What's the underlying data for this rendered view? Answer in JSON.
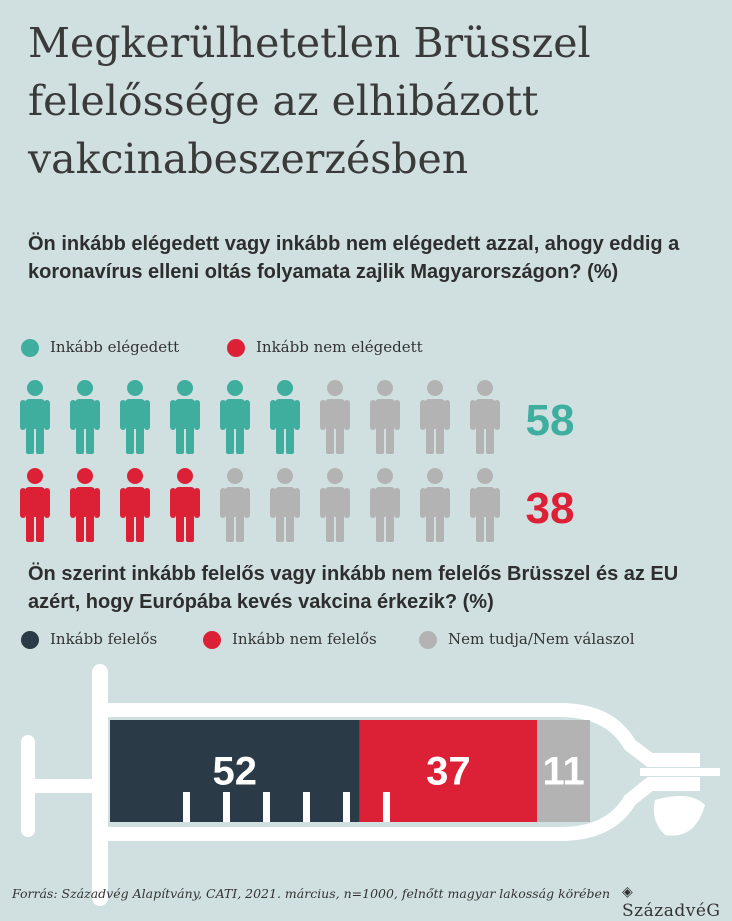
{
  "title": "Megkerülhetetlen Brüsszel felelőssége az elhibázott vakcinabeszerzésben",
  "chart_data": [
    {
      "type": "pictogram",
      "title": "Ön inkább elégedett vagy inkább nem elégedett azzal, ahogy eddig a koronavírus elleni oltás folyamata zajlik Magyarországon? (%)",
      "series": [
        {
          "name": "Inkább elégedett",
          "color": "#3fae9e",
          "values": [
            58
          ]
        },
        {
          "name": "Inkább nem elégedett",
          "color": "#dc2137",
          "values": [
            38
          ]
        }
      ]
    },
    {
      "type": "syringe-bar",
      "title": "Ön szerint inkább felelős vagy inkább nem felelős Brüsszel és az EU azért, hogy Európába kevés vakcina érkezik? (%)",
      "series": [
        {
          "name": "Inkább felelős",
          "color": "#2a3a46",
          "values": [
            52
          ]
        },
        {
          "name": "Inkább nem felelős",
          "color": "#dc2137",
          "values": [
            37
          ]
        },
        {
          "name": "Nem tudja/Nem válaszol",
          "color": "#b3b3b3",
          "values": [
            11
          ]
        }
      ]
    }
  ],
  "source": {
    "label": "Forrás:",
    "text": "Századvég Alapítvány, CATI, 2021. március, n=1000, felnőtt magyar lakosság körében"
  },
  "logo": "SzázadvéG"
}
